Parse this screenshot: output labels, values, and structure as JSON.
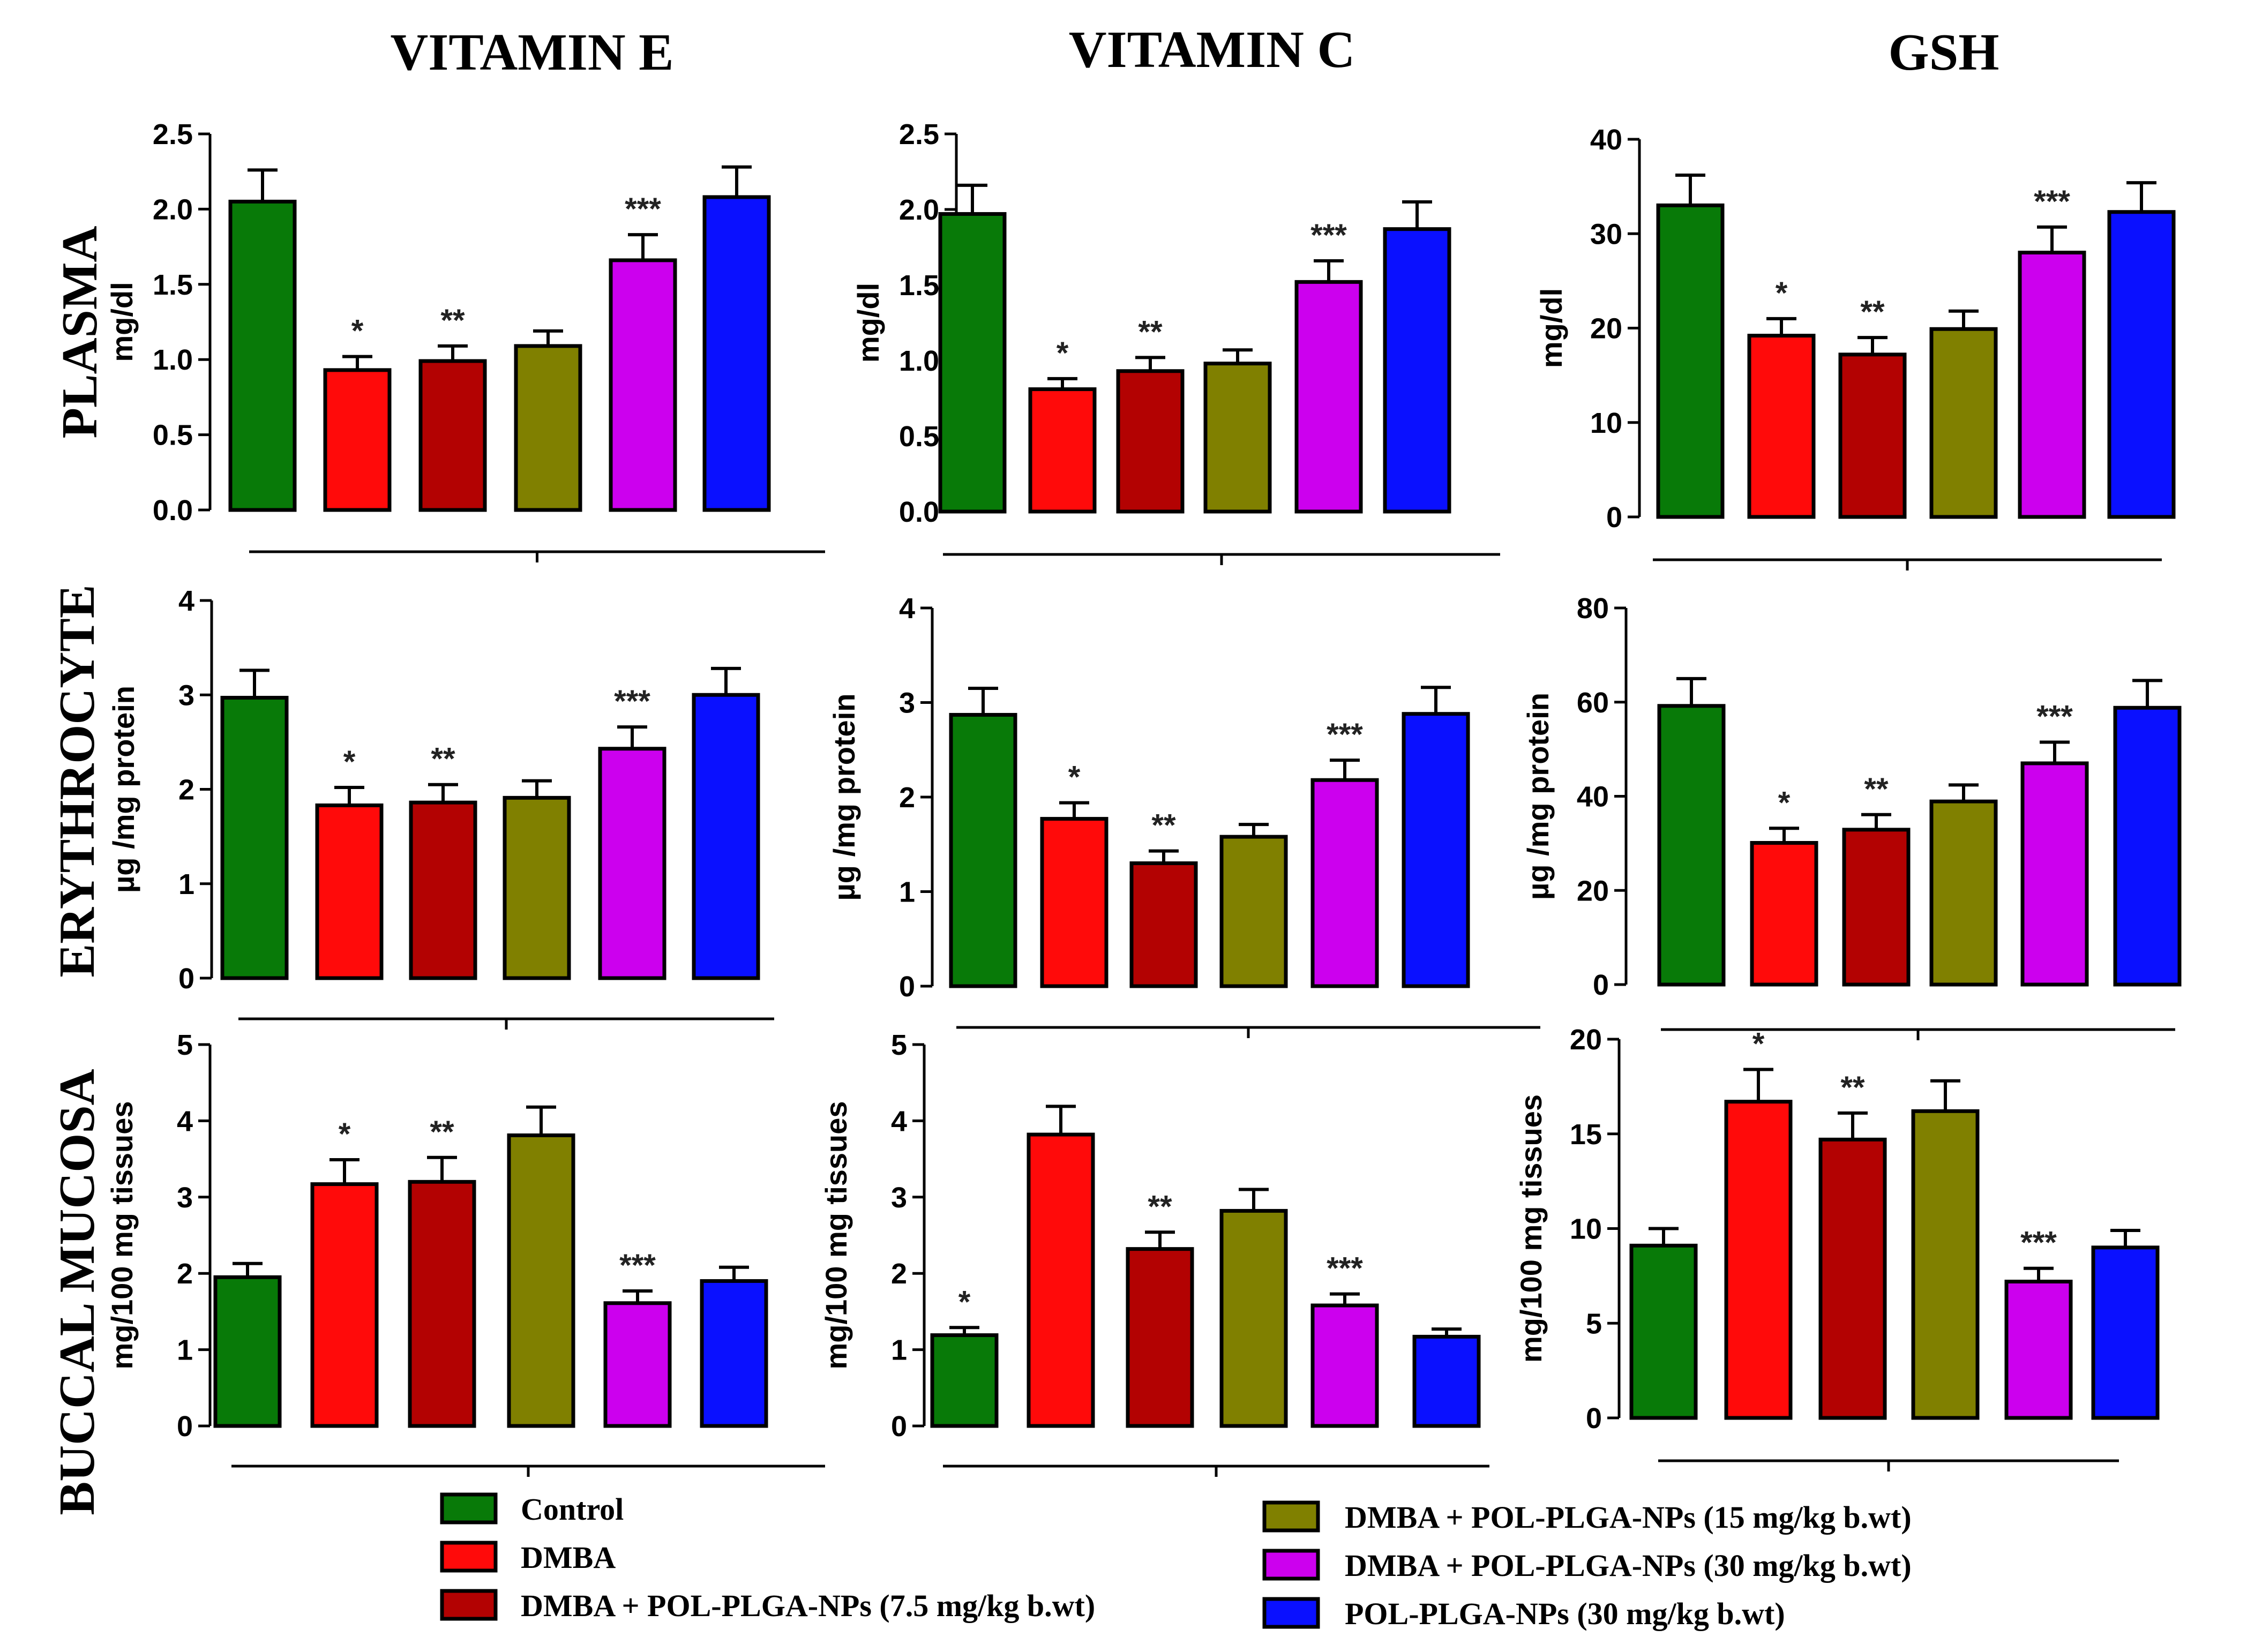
{
  "column_titles": [
    "VITAMIN E",
    "VITAMIN C",
    "GSH"
  ],
  "row_titles": [
    "PLASMA",
    "ERYTHROCYTE",
    "BUCCAL MUCOSA"
  ],
  "colors": [
    "#087a08",
    "#ff0a0a",
    "#b30202",
    "#808000",
    "#cc00ee",
    "#0a10ff"
  ],
  "legend": [
    "Control",
    "DMBA",
    "DMBA + POL-PLGA-NPs (7.5 mg/kg b.wt)",
    "DMBA + POL-PLGA-NPs (15 mg/kg b.wt)",
    "DMBA + POL-PLGA-NPs (30 mg/kg b.wt)",
    "POL-PLGA-NPs (30 mg/kg b.wt)"
  ],
  "chart_data": [
    {
      "type": "bar",
      "row": "PLASMA",
      "title": "VITAMIN E",
      "ylabel": "mg/dl",
      "ylim": [
        0,
        2.5
      ],
      "ticks": [
        "0.0",
        "0.5",
        "1.0",
        "1.5",
        "2.0",
        "2.5"
      ],
      "values": [
        2.05,
        0.93,
        0.99,
        1.09,
        1.66,
        2.08
      ],
      "errors": [
        0.21,
        0.09,
        0.1,
        0.1,
        0.17,
        0.2
      ],
      "annotations": [
        "",
        "*",
        "**",
        "",
        "***",
        ""
      ]
    },
    {
      "type": "bar",
      "row": "PLASMA",
      "title": "VITAMIN C",
      "ylabel": "mg/dl",
      "ylim": [
        0,
        2.5
      ],
      "ticks": [
        "0.0",
        "0.5",
        "1.0",
        "1.5",
        "2.0",
        "2.5"
      ],
      "values": [
        1.97,
        0.81,
        0.93,
        0.98,
        1.52,
        1.87
      ],
      "errors": [
        0.19,
        0.07,
        0.09,
        0.09,
        0.14,
        0.18
      ],
      "annotations": [
        "",
        "*",
        "**",
        "",
        "***",
        ""
      ]
    },
    {
      "type": "bar",
      "row": "PLASMA",
      "title": "GSH",
      "ylabel": "mg/dl",
      "ylim": [
        0,
        40
      ],
      "ticks": [
        "0",
        "10",
        "20",
        "30",
        "40"
      ],
      "values": [
        33,
        19.2,
        17.2,
        19.9,
        28,
        32.3
      ],
      "errors": [
        3.2,
        1.8,
        1.8,
        1.9,
        2.7,
        3.1
      ],
      "annotations": [
        "",
        "*",
        "**",
        "",
        "***",
        ""
      ]
    },
    {
      "type": "bar",
      "row": "ERYTHROCYTE",
      "title": "VITAMIN E",
      "ylabel": "µg /mg protein",
      "ylim": [
        0,
        4
      ],
      "ticks": [
        "0",
        "1",
        "2",
        "3",
        "4"
      ],
      "values": [
        2.97,
        1.83,
        1.86,
        1.91,
        2.43,
        3
      ],
      "errors": [
        0.29,
        0.19,
        0.19,
        0.18,
        0.23,
        0.28
      ],
      "annotations": [
        "",
        "*",
        "**",
        "",
        "***",
        ""
      ]
    },
    {
      "type": "bar",
      "row": "ERYTHROCYTE",
      "title": "VITAMIN C",
      "ylabel": "µg /mg protein",
      "ylim": [
        0,
        4
      ],
      "ticks": [
        "0",
        "1",
        "2",
        "3",
        "4"
      ],
      "values": [
        2.87,
        1.77,
        1.3,
        1.58,
        2.18,
        2.88
      ],
      "errors": [
        0.28,
        0.17,
        0.13,
        0.13,
        0.21,
        0.28
      ],
      "annotations": [
        "",
        "*",
        "**",
        "",
        "***",
        ""
      ]
    },
    {
      "type": "bar",
      "row": "ERYTHROCYTE",
      "title": "GSH",
      "ylabel": "µg /mg protein",
      "ylim": [
        0,
        80
      ],
      "ticks": [
        "0",
        "20",
        "40",
        "60",
        "80"
      ],
      "values": [
        59.2,
        30.1,
        32.9,
        38.9,
        47,
        58.8
      ],
      "errors": [
        5.8,
        3.1,
        3.2,
        3.5,
        4.5,
        5.8
      ],
      "annotations": [
        "",
        "*",
        "**",
        "",
        "***",
        ""
      ]
    },
    {
      "type": "bar",
      "row": "BUCCAL MUCOSA",
      "title": "VITAMIN E",
      "ylabel": "mg/100 mg tissues",
      "ylim": [
        0,
        5
      ],
      "ticks": [
        "0",
        "1",
        "2",
        "3",
        "4",
        "5"
      ],
      "values": [
        1.95,
        3.17,
        3.2,
        3.81,
        1.61,
        1.9
      ],
      "errors": [
        0.18,
        0.32,
        0.32,
        0.37,
        0.16,
        0.18
      ],
      "annotations": [
        "",
        "*",
        "**",
        "",
        "***",
        ""
      ]
    },
    {
      "type": "bar",
      "row": "BUCCAL MUCOSA",
      "title": "VITAMIN C",
      "ylabel": "mg/100 mg tissues",
      "ylim": [
        0,
        5
      ],
      "ticks": [
        "0",
        "1",
        "2",
        "3",
        "4",
        "5"
      ],
      "values": [
        1.19,
        3.82,
        2.32,
        2.82,
        1.58,
        1.17
      ],
      "errors": [
        0.1,
        0.37,
        0.22,
        0.28,
        0.15,
        0.1
      ],
      "annotations": [
        "*",
        "",
        "**",
        "",
        "***",
        ""
      ]
    },
    {
      "type": "bar",
      "row": "BUCCAL MUCOSA",
      "title": "GSH",
      "ylabel": "mg/100 mg tissues",
      "ylim": [
        0,
        20
      ],
      "ticks": [
        "0",
        "5",
        "10",
        "15",
        "20"
      ],
      "values": [
        9.1,
        16.7,
        14.7,
        16.2,
        7.2,
        9
      ],
      "errors": [
        0.9,
        1.7,
        1.4,
        1.6,
        0.7,
        0.9
      ],
      "annotations": [
        "",
        "*",
        "**",
        "",
        "***",
        ""
      ]
    }
  ]
}
